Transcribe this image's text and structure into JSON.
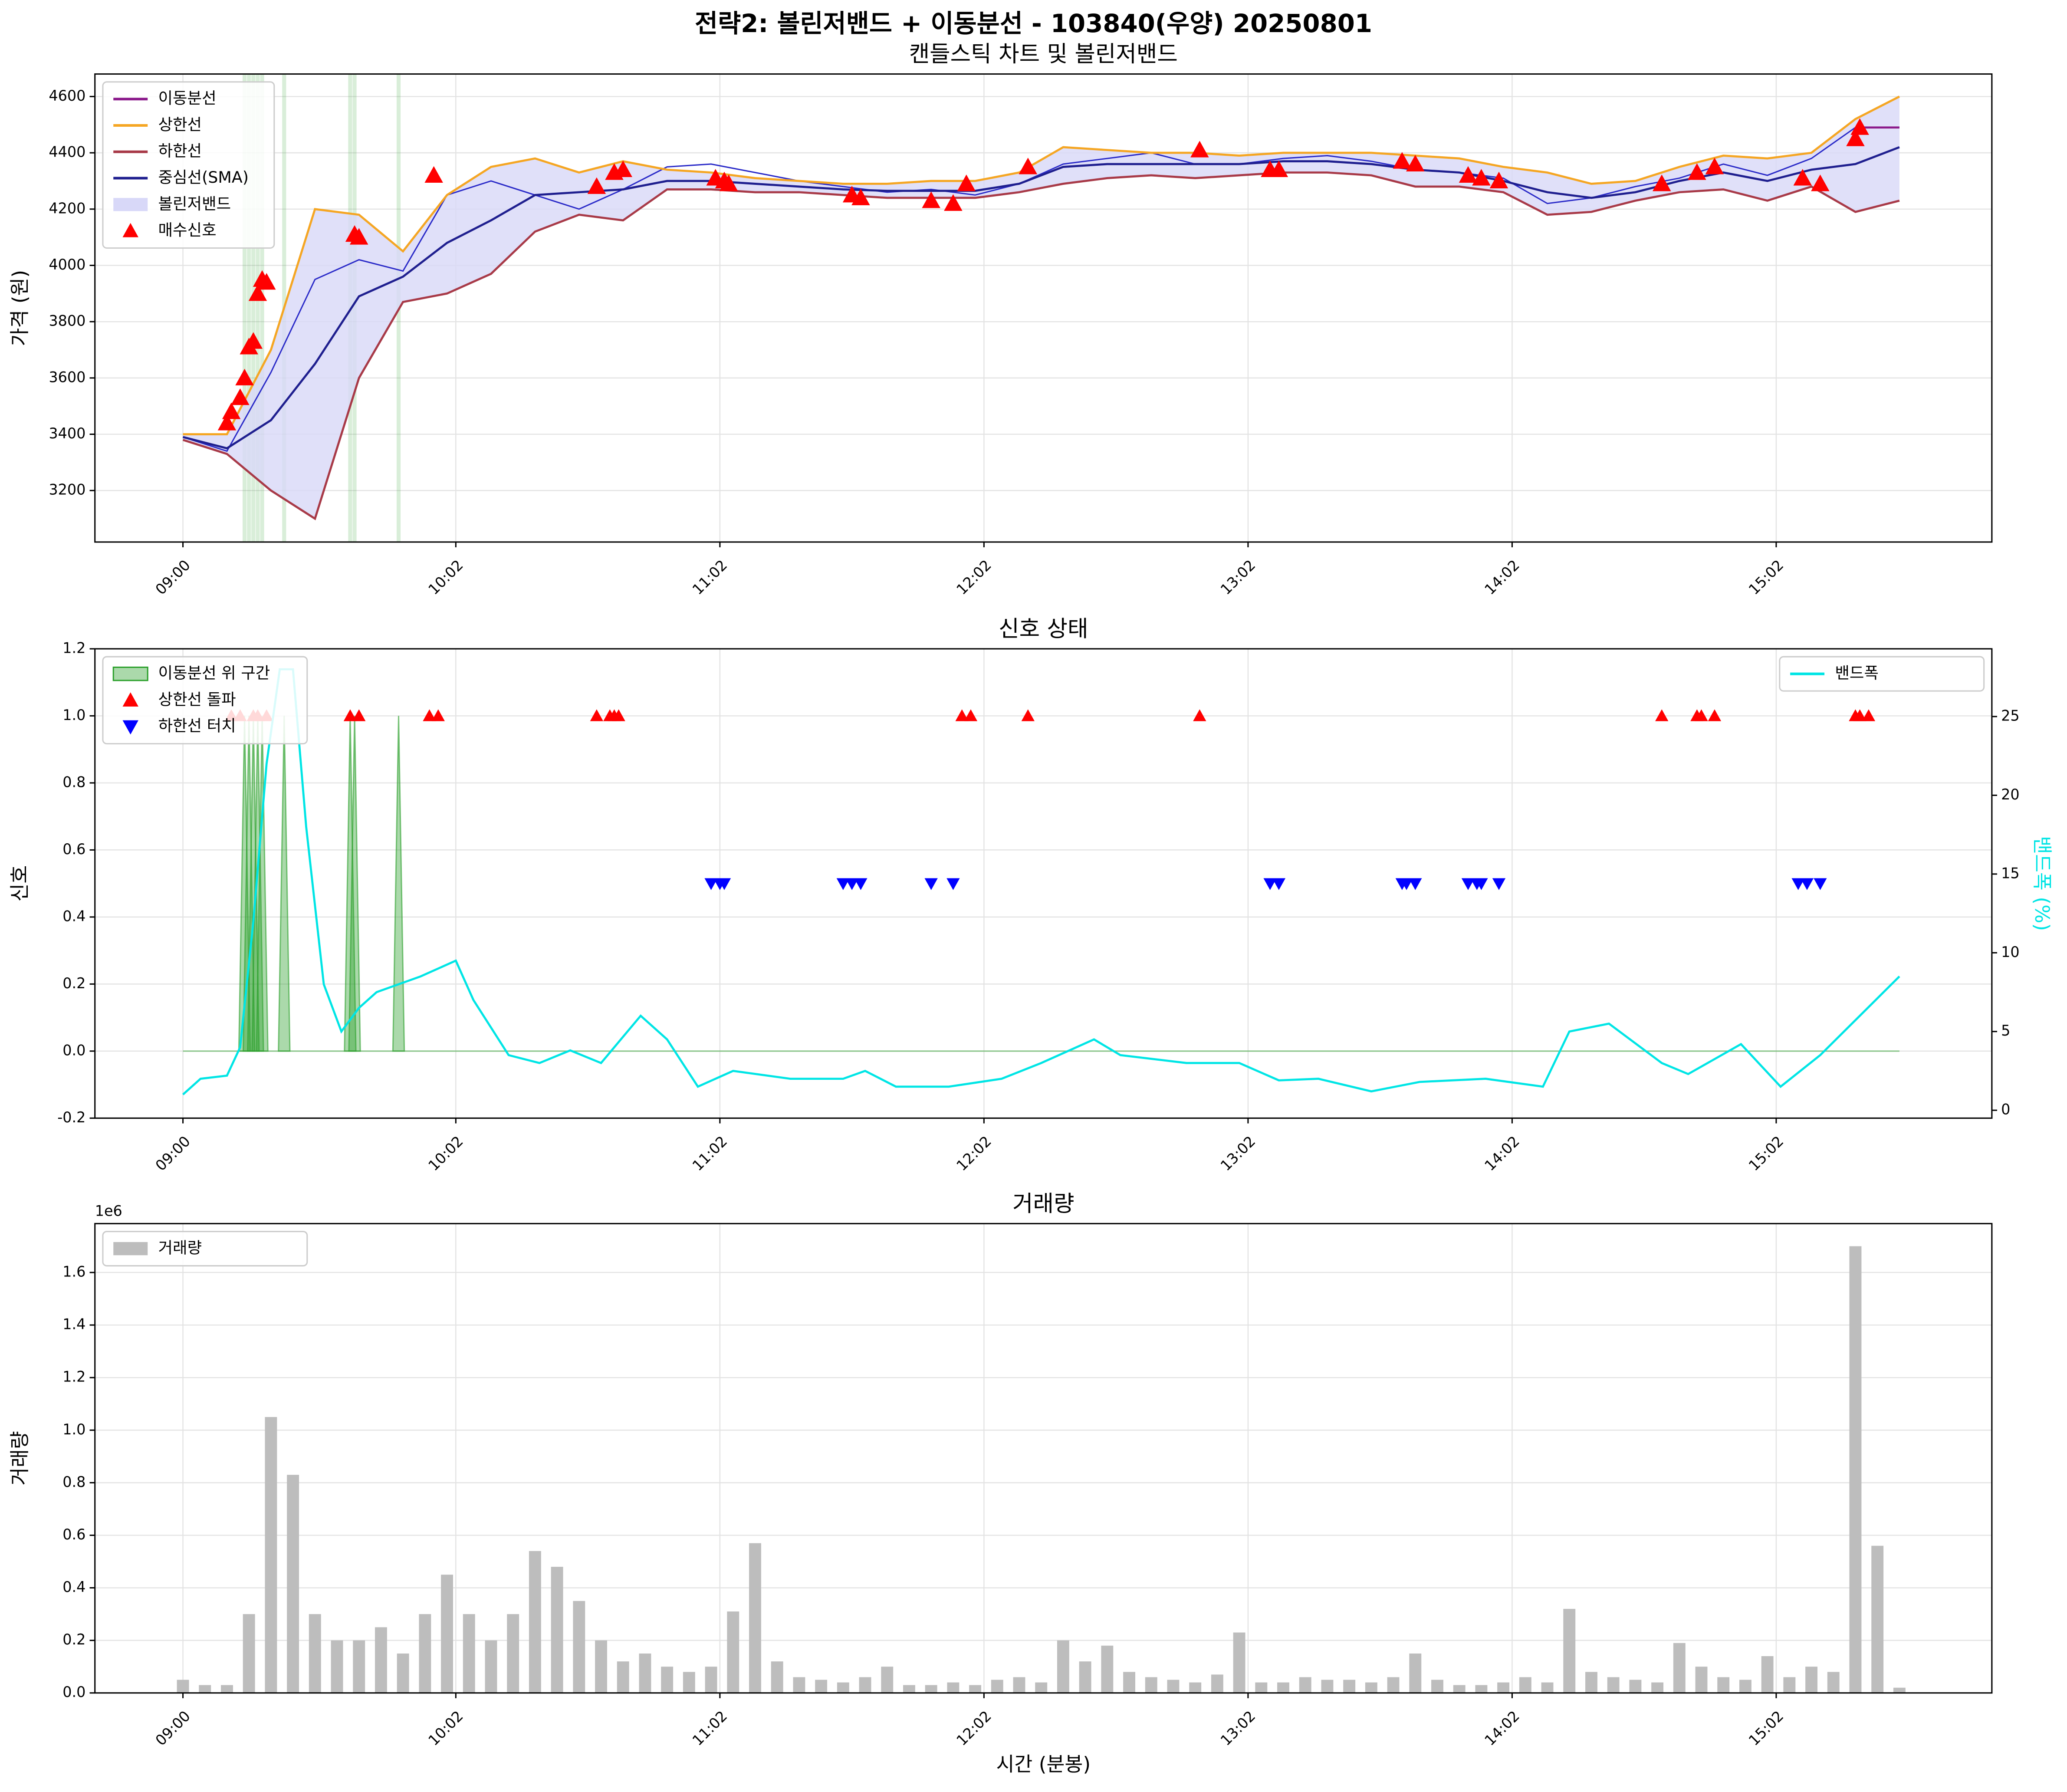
{
  "title": "전략2: 볼린저밴드 + 이동분선 - 103840(우양) 20250801",
  "chart_data": [
    {
      "type": "line",
      "title": "캔들스틱 차트 및 볼린저밴드",
      "ylabel": "가격 (원)",
      "x": [
        "09:00",
        "09:10",
        "09:20",
        "09:30",
        "09:40",
        "09:50",
        "10:00",
        "10:10",
        "10:20",
        "10:30",
        "10:40",
        "10:50",
        "11:00",
        "11:10",
        "11:20",
        "11:30",
        "11:40",
        "11:50",
        "12:00",
        "12:10",
        "12:20",
        "12:30",
        "12:40",
        "12:50",
        "13:00",
        "13:10",
        "13:20",
        "13:30",
        "13:40",
        "13:50",
        "14:00",
        "14:10",
        "14:20",
        "14:30",
        "14:40",
        "14:50",
        "15:00",
        "15:10",
        "15:20",
        "15:30"
      ],
      "xlim": [
        "08:40",
        "15:51"
      ],
      "xticks": [
        "09:00",
        "10:02",
        "11:02",
        "12:02",
        "13:02",
        "14:02",
        "15:02"
      ],
      "ylim": [
        3017,
        4680
      ],
      "yticks": [
        3200,
        3400,
        3600,
        3800,
        4000,
        4200,
        4400,
        4600
      ],
      "grid": true,
      "legend": "upper left",
      "band": {
        "name": "볼린저밴드",
        "color": "#d8d8f8"
      },
      "series": [
        {
          "color": "#2b2bc8",
          "values": [
            3390,
            3340,
            3620,
            3950,
            4020,
            3980,
            4250,
            4300,
            4250,
            4200,
            4270,
            4350,
            4360,
            4330,
            4300,
            4280,
            4260,
            4270,
            4250,
            4290,
            4360,
            4380,
            4400,
            4360,
            4360,
            4380,
            4390,
            4370,
            4340,
            4330,
            4310,
            4220,
            4240,
            4280,
            4310,
            4360,
            4320,
            4380,
            4490,
            4490
          ]
        },
        {
          "name": "이동분선",
          "color": "#8b1a8b",
          "values": [
            null,
            null,
            null,
            null,
            null,
            null,
            null,
            null,
            null,
            null,
            null,
            null,
            null,
            null,
            null,
            null,
            null,
            null,
            null,
            null,
            null,
            null,
            null,
            null,
            null,
            null,
            null,
            null,
            null,
            null,
            null,
            null,
            null,
            null,
            null,
            null,
            null,
            null,
            4490,
            4490
          ]
        },
        {
          "name": "상한선",
          "color": "#f5a623",
          "values": [
            3400,
            3400,
            3700,
            4200,
            4180,
            4050,
            4250,
            4350,
            4380,
            4330,
            4370,
            4340,
            4330,
            4310,
            4300,
            4290,
            4290,
            4300,
            4300,
            4330,
            4420,
            4410,
            4400,
            4400,
            4390,
            4400,
            4400,
            4400,
            4390,
            4380,
            4350,
            4330,
            4290,
            4300,
            4350,
            4390,
            4380,
            4400,
            4520,
            4600
          ]
        },
        {
          "name": "하한선",
          "color": "#a83a48",
          "values": [
            3380,
            3330,
            3200,
            3100,
            3600,
            3870,
            3900,
            3970,
            4120,
            4180,
            4160,
            4270,
            4270,
            4260,
            4260,
            4250,
            4240,
            4240,
            4240,
            4260,
            4290,
            4310,
            4320,
            4310,
            4320,
            4330,
            4330,
            4320,
            4280,
            4280,
            4260,
            4180,
            4190,
            4230,
            4260,
            4270,
            4230,
            4280,
            4190,
            4230
          ]
        },
        {
          "name": "중심선(SMA)",
          "color": "#1f1f8f",
          "values": [
            3390,
            3350,
            3450,
            3650,
            3890,
            3960,
            4080,
            4160,
            4250,
            4260,
            4270,
            4300,
            4300,
            4290,
            4280,
            4270,
            4265,
            4265,
            4265,
            4290,
            4350,
            4360,
            4360,
            4360,
            4360,
            4370,
            4370,
            4360,
            4340,
            4330,
            4300,
            4260,
            4240,
            4260,
            4300,
            4330,
            4300,
            4340,
            4360,
            4420
          ]
        },
        {
          "name": "매수신호",
          "color": "#ff0000",
          "kind": "marker",
          "marker": "^",
          "x": [
            "09:10",
            "09:11",
            "09:13",
            "09:14",
            "09:15",
            "09:16",
            "09:17",
            "09:18",
            "09:19",
            "09:39",
            "09:40",
            "09:57",
            "10:34",
            "10:38",
            "10:40",
            "11:01",
            "11:03",
            "11:04",
            "11:32",
            "11:34",
            "11:50",
            "11:55",
            "11:58",
            "12:12",
            "12:51",
            "13:07",
            "13:09",
            "13:37",
            "13:40",
            "13:52",
            "13:55",
            "13:59",
            "14:36",
            "14:44",
            "14:48",
            "15:08",
            "15:12",
            "15:20",
            "15:21"
          ],
          "values": [
            3440,
            3480,
            3530,
            3600,
            3710,
            3730,
            3900,
            3950,
            3940,
            4110,
            4100,
            4320,
            4280,
            4330,
            4340,
            4310,
            4300,
            4290,
            4250,
            4240,
            4230,
            4220,
            4290,
            4350,
            4410,
            4340,
            4340,
            4370,
            4360,
            4320,
            4310,
            4300,
            4290,
            4330,
            4350,
            4310,
            4290,
            4450,
            4490
          ]
        }
      ]
    },
    {
      "type": "line",
      "title": "신호 상태",
      "ylabel": "신호",
      "y2label": "밴드폭 (%)",
      "xlim": [
        "08:40",
        "15:51"
      ],
      "xticks": [
        "09:00",
        "10:02",
        "11:02",
        "12:02",
        "13:02",
        "14:02",
        "15:02"
      ],
      "ylim": [
        -0.2,
        1.2
      ],
      "yticks": [
        -0.2,
        {
          "value": 0,
          "label": "0.0"
        },
        0.2,
        0.4,
        0.6,
        0.8,
        {
          "value": 1,
          "label": "1.0"
        },
        1.2
      ],
      "y2lim": [
        -0.5,
        29.3
      ],
      "y2ticks": [
        0,
        5,
        10,
        15,
        20,
        25
      ],
      "grid": true,
      "legend": "upper left",
      "series": [
        {
          "name": "이동분선 위 구간",
          "color": "#2ca02c",
          "kind": "fill",
          "x": [
            "09:14",
            "09:15",
            "09:16",
            "09:17",
            "09:18",
            "09:23",
            "09:38",
            "09:39",
            "09:49"
          ],
          "values": [
            1,
            1,
            1,
            1,
            1,
            1,
            1,
            1,
            1
          ]
        },
        {
          "name": "상한선 돌파",
          "color": "#ff0000",
          "kind": "marker",
          "marker": "^",
          "x": [
            "09:11",
            "09:13",
            "09:16",
            "09:17",
            "09:19",
            "09:38",
            "09:40",
            "09:56",
            "09:58",
            "10:34",
            "10:37",
            "10:38",
            "10:39",
            "11:57",
            "11:59",
            "12:12",
            "12:51",
            "14:36",
            "14:44",
            "14:45",
            "14:48",
            "15:20",
            "15:21",
            "15:23"
          ],
          "values": [
            1,
            1,
            1,
            1,
            1,
            1,
            1,
            1,
            1,
            1,
            1,
            1,
            1,
            1,
            1,
            1,
            1,
            1,
            1,
            1,
            1,
            1,
            1,
            1
          ]
        },
        {
          "name": "하한선 터치",
          "color": "#0000ff",
          "kind": "marker",
          "marker": "v",
          "x": [
            "11:00",
            "11:02",
            "11:03",
            "11:30",
            "11:32",
            "11:34",
            "11:50",
            "11:55",
            "13:07",
            "13:09",
            "13:37",
            "13:38",
            "13:40",
            "13:52",
            "13:54",
            "13:55",
            "13:59",
            "15:07",
            "15:09",
            "15:12"
          ],
          "values": [
            0.5,
            0.5,
            0.5,
            0.5,
            0.5,
            0.5,
            0.5,
            0.5,
            0.5,
            0.5,
            0.5,
            0.5,
            0.5,
            0.5,
            0.5,
            0.5,
            0.5,
            0.5,
            0.5,
            0.5
          ]
        },
        {
          "name": "밴드폭",
          "color": "#00e5e5",
          "axis": "y2",
          "legend": "upper right",
          "x": [
            "09:00",
            "09:04",
            "09:10",
            "09:13",
            "09:16",
            "09:19",
            "09:22",
            "09:25",
            "09:28",
            "09:32",
            "09:36",
            "09:40",
            "09:44",
            "09:49",
            "09:54",
            "10:02",
            "10:06",
            "10:14",
            "10:21",
            "10:28",
            "10:35",
            "10:44",
            "10:50",
            "10:57",
            "11:05",
            "11:18",
            "11:30",
            "11:35",
            "11:42",
            "11:54",
            "12:06",
            "12:15",
            "12:27",
            "12:33",
            "12:48",
            "13:00",
            "13:09",
            "13:18",
            "13:30",
            "13:41",
            "13:56",
            "14:09",
            "14:15",
            "14:24",
            "14:36",
            "14:42",
            "14:54",
            "15:03",
            "15:12",
            "15:21",
            "15:30"
          ],
          "values": [
            1,
            2,
            2.2,
            4,
            12,
            22,
            28,
            28,
            18,
            8,
            5,
            6.5,
            7.5,
            8,
            8.5,
            9.5,
            7,
            3.5,
            3,
            3.8,
            3,
            6,
            4.5,
            1.5,
            2.5,
            2,
            2,
            2.5,
            1.5,
            1.5,
            2,
            3,
            4.5,
            3.5,
            3,
            3,
            1.9,
            2,
            1.2,
            1.8,
            2,
            1.5,
            5,
            5.5,
            3,
            2.3,
            4.2,
            1.5,
            3.5,
            6,
            8.5
          ]
        }
      ]
    },
    {
      "type": "bar",
      "title": "거래량",
      "ylabel": "거래량",
      "xlabel": "시간 (분봉)",
      "offset_label": "1e6",
      "x": [
        "09:00",
        "09:05",
        "09:10",
        "09:15",
        "09:20",
        "09:25",
        "09:30",
        "09:35",
        "09:40",
        "09:45",
        "09:50",
        "09:55",
        "10:00",
        "10:05",
        "10:10",
        "10:15",
        "10:20",
        "10:25",
        "10:30",
        "10:35",
        "10:40",
        "10:45",
        "10:50",
        "10:55",
        "11:00",
        "11:05",
        "11:10",
        "11:15",
        "11:20",
        "11:25",
        "11:30",
        "11:35",
        "11:40",
        "11:45",
        "11:50",
        "11:55",
        "12:00",
        "12:05",
        "12:10",
        "12:15",
        "12:20",
        "12:25",
        "12:30",
        "12:35",
        "12:40",
        "12:45",
        "12:50",
        "12:55",
        "13:00",
        "13:05",
        "13:10",
        "13:15",
        "13:20",
        "13:25",
        "13:30",
        "13:35",
        "13:40",
        "13:45",
        "13:50",
        "13:55",
        "14:00",
        "14:05",
        "14:10",
        "14:15",
        "14:20",
        "14:25",
        "14:30",
        "14:35",
        "14:40",
        "14:45",
        "14:50",
        "14:55",
        "15:00",
        "15:05",
        "15:10",
        "15:15",
        "15:20",
        "15:25",
        "15:30"
      ],
      "xlim": [
        "08:40",
        "15:51"
      ],
      "xticks": [
        "09:00",
        "10:02",
        "11:02",
        "12:02",
        "13:02",
        "14:02",
        "15:02"
      ],
      "ylim": [
        0,
        1.786
      ],
      "yticks": [
        {
          "value": 0,
          "label": "0.0"
        },
        0.2,
        0.4,
        0.6,
        0.8,
        {
          "value": 1,
          "label": "1.0"
        },
        1.2,
        1.4,
        1.6
      ],
      "grid": true,
      "legend": "upper left",
      "series": [
        {
          "name": "거래량",
          "color": "#bdbdbd",
          "values": [
            0.05,
            0.03,
            0.03,
            0.3,
            1.05,
            0.83,
            0.3,
            0.2,
            0.2,
            0.25,
            0.15,
            0.3,
            0.45,
            0.3,
            0.2,
            0.3,
            0.54,
            0.48,
            0.35,
            0.2,
            0.12,
            0.15,
            0.1,
            0.08,
            0.1,
            0.31,
            0.57,
            0.12,
            0.06,
            0.05,
            0.04,
            0.06,
            0.1,
            0.03,
            0.03,
            0.04,
            0.03,
            0.05,
            0.06,
            0.04,
            0.2,
            0.12,
            0.18,
            0.08,
            0.06,
            0.05,
            0.04,
            0.07,
            0.23,
            0.04,
            0.04,
            0.06,
            0.05,
            0.05,
            0.04,
            0.06,
            0.15,
            0.05,
            0.03,
            0.03,
            0.04,
            0.06,
            0.04,
            0.32,
            0.08,
            0.06,
            0.05,
            0.04,
            0.19,
            0.1,
            0.06,
            0.05,
            0.14,
            0.06,
            0.1,
            0.08,
            1.7,
            0.56,
            0.02
          ]
        }
      ]
    }
  ]
}
